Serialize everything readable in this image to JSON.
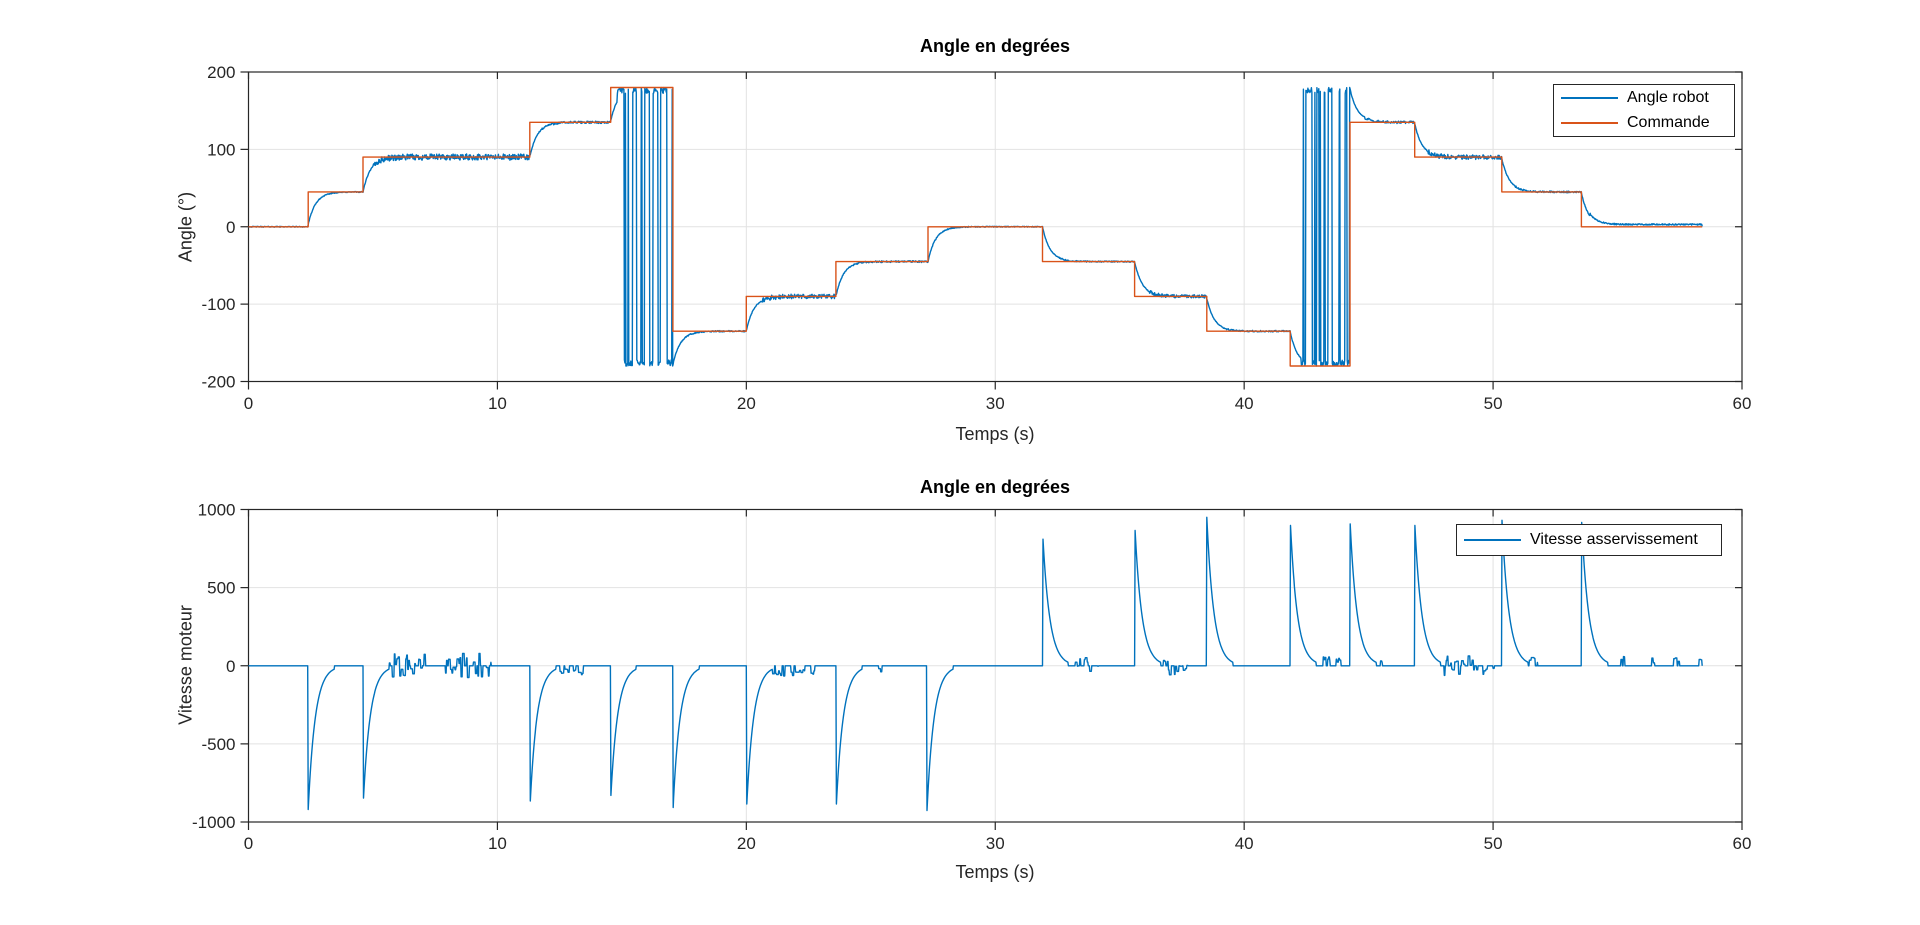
{
  "figure": {
    "background": "#FFFFFF",
    "colors": {
      "series_blue": "#0072BD",
      "series_orange": "#D95319",
      "grid": "#E2E2E2",
      "axis": "#262626",
      "title": "#000000"
    }
  },
  "chart_data": [
    {
      "type": "line",
      "title": "Angle en degrées",
      "xlabel": "Temps (s)",
      "ylabel": "Angle (°)",
      "xlim": [
        0,
        60
      ],
      "ylim": [
        -200,
        200
      ],
      "xticks": [
        0,
        10,
        20,
        30,
        40,
        50,
        60
      ],
      "yticks": [
        -200,
        -100,
        0,
        100,
        200
      ],
      "grid": true,
      "t_end": 58.4,
      "legend": {
        "position": "northeast",
        "entries": [
          {
            "label": "Angle robot",
            "color": "#0072BD"
          },
          {
            "label": "Commande",
            "color": "#D95319"
          }
        ]
      },
      "series": [
        {
          "name": "Angle robot",
          "color": "#0072BD",
          "kind": "servo",
          "tau": 0.3,
          "base_noise": 0.6,
          "command_steps": [
            [
              0,
              0
            ],
            [
              2.4,
              45
            ],
            [
              4.6,
              90
            ],
            [
              11.3,
              135
            ],
            [
              14.55,
              180
            ],
            [
              17.05,
              -135
            ],
            [
              20.0,
              -90
            ],
            [
              23.6,
              -45
            ],
            [
              27.3,
              0
            ],
            [
              31.9,
              -45
            ],
            [
              35.6,
              -90
            ],
            [
              38.5,
              -135
            ],
            [
              41.85,
              -180
            ],
            [
              44.25,
              135
            ],
            [
              46.85,
              90
            ],
            [
              50.35,
              45
            ],
            [
              53.55,
              0
            ]
          ],
          "oscillation_zones": [
            [
              14.8,
              17.05,
              -180
            ],
            [
              42.3,
              44.25,
              180
            ]
          ],
          "oscillation_amplitude": 180,
          "noise_zones": [
            [
              5.0,
              11.3,
              4,
              0
            ],
            [
              11.7,
              14.55,
              1.5,
              0
            ],
            [
              17.5,
              20.0,
              0.9,
              0
            ],
            [
              20.6,
              23.6,
              3,
              0
            ],
            [
              24.2,
              27.3,
              1.2,
              0
            ],
            [
              27.9,
              31.9,
              0.6,
              0
            ],
            [
              32.5,
              35.6,
              0.8,
              0
            ],
            [
              36.2,
              38.5,
              2.2,
              0
            ],
            [
              39.1,
              41.85,
              0.9,
              0
            ],
            [
              44.8,
              46.85,
              1.6,
              0
            ],
            [
              47.4,
              50.35,
              3,
              0
            ],
            [
              50.9,
              53.55,
              1.1,
              0
            ],
            [
              53.9,
              58.4,
              0.9,
              3
            ]
          ]
        },
        {
          "name": "Commande",
          "color": "#D95319",
          "kind": "steps",
          "steps": [
            [
              0,
              0
            ],
            [
              2.4,
              45
            ],
            [
              4.6,
              90
            ],
            [
              11.3,
              135
            ],
            [
              14.55,
              180
            ],
            [
              17.05,
              -135
            ],
            [
              20.0,
              -90
            ],
            [
              23.6,
              -45
            ],
            [
              27.3,
              0
            ],
            [
              31.9,
              -45
            ],
            [
              35.6,
              -90
            ],
            [
              38.5,
              -135
            ],
            [
              41.85,
              -180
            ],
            [
              44.25,
              135
            ],
            [
              46.85,
              90
            ],
            [
              50.35,
              45
            ],
            [
              53.55,
              0
            ]
          ]
        }
      ]
    },
    {
      "type": "line",
      "title": "Angle en degrées",
      "xlabel": "Temps (s)",
      "ylabel": "Vitesse moteur",
      "xlim": [
        0,
        60
      ],
      "ylim": [
        -1000,
        1000
      ],
      "xticks": [
        0,
        10,
        20,
        30,
        40,
        50,
        60
      ],
      "yticks": [
        -1000,
        -500,
        0,
        500,
        1000
      ],
      "grid": true,
      "t_end": 58.4,
      "legend": {
        "position": "northeast",
        "entries": [
          {
            "label": "Vitesse asservissement",
            "color": "#0072BD"
          }
        ]
      },
      "series": [
        {
          "name": "Vitesse asservissement",
          "color": "#0072BD",
          "kind": "spikes",
          "decay_tau": 0.28,
          "cutoff": 22,
          "spikes": [
            [
              2.4,
              -920
            ],
            [
              4.6,
              -910
            ],
            [
              11.3,
              -930
            ],
            [
              14.55,
              -860
            ],
            [
              17.05,
              -940
            ],
            [
              20.0,
              -950
            ],
            [
              23.6,
              -950
            ],
            [
              27.25,
              -960
            ],
            [
              31.9,
              870
            ],
            [
              35.6,
              930
            ],
            [
              38.5,
              950
            ],
            [
              41.85,
              930
            ],
            [
              44.25,
              940
            ],
            [
              46.85,
              930
            ],
            [
              50.35,
              965
            ],
            [
              53.55,
              950
            ]
          ],
          "noise_bursts": [
            [
              5.35,
              7.1,
              80,
              0
            ],
            [
              7.9,
              9.75,
              80,
              0
            ],
            [
              11.95,
              12.35,
              45,
              -1
            ],
            [
              12.45,
              13.45,
              70,
              -1
            ],
            [
              14.85,
              14.95,
              60,
              1
            ],
            [
              21.0,
              22.35,
              70,
              -1
            ],
            [
              22.5,
              22.75,
              60,
              -1
            ],
            [
              25.25,
              25.45,
              60,
              -1
            ],
            [
              33.2,
              34.15,
              55,
              0
            ],
            [
              36.75,
              37.75,
              60,
              0
            ],
            [
              43.1,
              43.45,
              60,
              1
            ],
            [
              43.7,
              43.9,
              60,
              1
            ],
            [
              44.8,
              45.1,
              60,
              1
            ],
            [
              45.4,
              45.55,
              60,
              1
            ],
            [
              47.95,
              49.4,
              70,
              0
            ],
            [
              49.6,
              50.1,
              55,
              -1
            ],
            [
              51.45,
              51.8,
              60,
              1
            ],
            [
              55.0,
              55.3,
              60,
              1
            ],
            [
              56.25,
              56.5,
              60,
              1
            ],
            [
              57.25,
              57.5,
              60,
              1
            ],
            [
              58.15,
              58.4,
              60,
              1
            ]
          ]
        }
      ]
    }
  ]
}
